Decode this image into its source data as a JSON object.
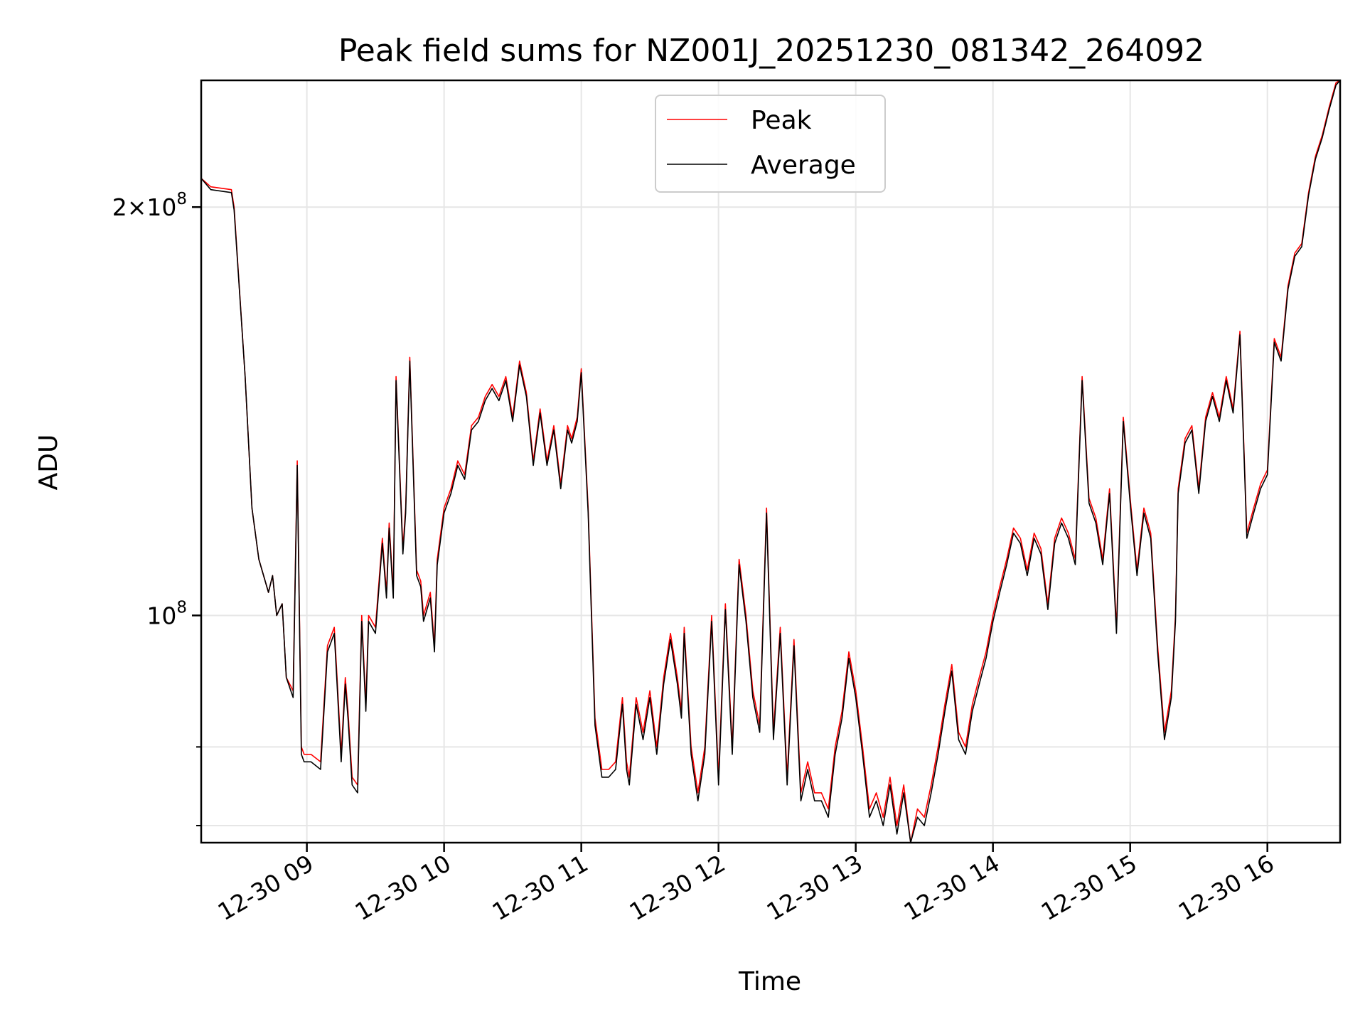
{
  "chart_data": {
    "type": "line",
    "title": "Peak field sums for NZ001J_20251230_081342_264092",
    "xlabel": "Time",
    "ylabel": "ADU",
    "yscale": "log",
    "ylim": [
      68000000,
      248000000
    ],
    "xlim": [
      8.23,
      16.53
    ],
    "grid": true,
    "legend_position": "upper center",
    "x_ticks": [
      {
        "value": 9,
        "label": "12-30 09"
      },
      {
        "value": 10,
        "label": "12-30 10"
      },
      {
        "value": 11,
        "label": "12-30 11"
      },
      {
        "value": 12,
        "label": "12-30 12"
      },
      {
        "value": 13,
        "label": "12-30 13"
      },
      {
        "value": 14,
        "label": "12-30 14"
      },
      {
        "value": 15,
        "label": "12-30 15"
      },
      {
        "value": 16,
        "label": "12-30 16"
      }
    ],
    "y_major_ticks": [
      {
        "value": 100000000,
        "base": "10",
        "exp": "8",
        "mantissa": ""
      },
      {
        "value": 200000000,
        "base": "10",
        "exp": "8",
        "mantissa": "2×"
      }
    ],
    "y_minor_ticks": [
      70000000,
      80000000
    ],
    "x_hours": [
      8.23,
      8.3,
      8.45,
      8.47,
      8.55,
      8.6,
      8.65,
      8.72,
      8.75,
      8.78,
      8.82,
      8.85,
      8.9,
      8.93,
      8.96,
      8.98,
      9.03,
      9.1,
      9.15,
      9.2,
      9.22,
      9.25,
      9.28,
      9.3,
      9.33,
      9.37,
      9.4,
      9.43,
      9.45,
      9.5,
      9.55,
      9.58,
      9.6,
      9.63,
      9.65,
      9.7,
      9.72,
      9.75,
      9.8,
      9.83,
      9.85,
      9.9,
      9.93,
      9.95,
      10.0,
      10.05,
      10.1,
      10.15,
      10.2,
      10.25,
      10.3,
      10.35,
      10.4,
      10.45,
      10.5,
      10.55,
      10.6,
      10.65,
      10.7,
      10.75,
      10.8,
      10.85,
      10.9,
      10.93,
      10.97,
      11.0,
      11.05,
      11.1,
      11.15,
      11.2,
      11.25,
      11.3,
      11.33,
      11.35,
      11.4,
      11.45,
      11.5,
      11.55,
      11.6,
      11.65,
      11.7,
      11.73,
      11.75,
      11.8,
      11.85,
      11.9,
      11.95,
      12.0,
      12.05,
      12.1,
      12.15,
      12.2,
      12.25,
      12.3,
      12.35,
      12.4,
      12.45,
      12.5,
      12.55,
      12.6,
      12.65,
      12.7,
      12.75,
      12.8,
      12.85,
      12.9,
      12.95,
      13.0,
      13.05,
      13.1,
      13.15,
      13.2,
      13.25,
      13.3,
      13.35,
      13.4,
      13.45,
      13.5,
      13.55,
      13.6,
      13.65,
      13.7,
      13.75,
      13.8,
      13.85,
      13.9,
      13.95,
      14.0,
      14.05,
      14.1,
      14.15,
      14.2,
      14.25,
      14.3,
      14.35,
      14.4,
      14.45,
      14.5,
      14.55,
      14.6,
      14.65,
      14.7,
      14.75,
      14.8,
      14.85,
      14.9,
      14.95,
      15.0,
      15.05,
      15.1,
      15.15,
      15.2,
      15.25,
      15.3,
      15.33,
      15.35,
      15.4,
      15.45,
      15.5,
      15.55,
      15.6,
      15.65,
      15.7,
      15.75,
      15.8,
      15.85,
      15.9,
      15.95,
      16.0,
      16.05,
      16.1,
      16.15,
      16.2,
      16.25,
      16.3,
      16.35,
      16.4,
      16.45,
      16.5,
      16.53
    ],
    "series": [
      {
        "name": "Peak",
        "color": "#ff0000",
        "values": [
          210000000,
          207000000,
          206000000,
          200000000,
          150000000,
          120000000,
          110000000,
          104000000,
          107000000,
          100000000,
          102000000,
          90000000,
          88000000,
          130000000,
          80000000,
          79000000,
          79000000,
          78000000,
          95000000,
          98000000,
          90000000,
          79000000,
          90000000,
          85000000,
          76000000,
          75000000,
          100000000,
          86000000,
          100000000,
          98000000,
          114000000,
          104000000,
          117000000,
          104000000,
          150000000,
          112000000,
          120000000,
          155000000,
          108000000,
          106000000,
          100000000,
          104000000,
          95000000,
          110000000,
          120000000,
          124000000,
          130000000,
          127000000,
          138000000,
          140000000,
          145000000,
          148000000,
          145000000,
          150000000,
          140000000,
          154000000,
          146000000,
          130000000,
          142000000,
          130000000,
          138000000,
          125000000,
          138000000,
          135000000,
          140000000,
          152000000,
          120000000,
          84000000,
          77000000,
          77000000,
          78000000,
          87000000,
          78000000,
          76000000,
          87000000,
          82000000,
          88000000,
          80000000,
          90000000,
          97000000,
          90000000,
          85000000,
          98000000,
          80000000,
          74000000,
          80000000,
          100000000,
          76000000,
          102000000,
          80000000,
          110000000,
          100000000,
          88000000,
          83000000,
          120000000,
          82000000,
          98000000,
          76000000,
          96000000,
          74000000,
          78000000,
          74000000,
          74000000,
          72000000,
          80000000,
          85000000,
          94000000,
          88000000,
          80000000,
          72000000,
          74000000,
          71000000,
          76000000,
          70000000,
          75000000,
          68000000,
          72000000,
          71000000,
          75000000,
          80000000,
          86000000,
          92000000,
          82000000,
          80000000,
          86000000,
          90000000,
          94000000,
          100000000,
          105000000,
          110000000,
          116000000,
          114000000,
          108000000,
          115000000,
          112000000,
          102000000,
          114000000,
          118000000,
          115000000,
          110000000,
          150000000,
          122000000,
          118000000,
          110000000,
          124000000,
          98000000,
          140000000,
          122000000,
          108000000,
          120000000,
          115000000,
          95000000,
          82000000,
          88000000,
          100000000,
          124000000,
          135000000,
          138000000,
          124000000,
          140000000,
          146000000,
          140000000,
          150000000,
          142000000,
          162000000,
          115000000,
          120000000,
          125000000,
          128000000,
          160000000,
          155000000,
          175000000,
          185000000,
          188000000,
          205000000,
          218000000,
          226000000,
          237000000,
          247000000,
          248000000
        ]
      },
      {
        "name": "Average",
        "color": "#000000",
        "values": [
          210000000,
          206000000,
          205000000,
          199000000,
          150000000,
          120000000,
          110000000,
          104000000,
          107000000,
          100000000,
          102000000,
          90000000,
          87000000,
          129000000,
          79000000,
          78000000,
          78000000,
          77000000,
          94000000,
          97000000,
          89000000,
          78000000,
          89000000,
          84000000,
          75000000,
          74000000,
          99000000,
          85000000,
          99000000,
          97000000,
          113000000,
          103000000,
          116000000,
          103000000,
          149000000,
          111000000,
          119000000,
          154000000,
          107000000,
          105000000,
          99000000,
          103000000,
          94000000,
          109000000,
          119000000,
          123000000,
          129000000,
          126000000,
          137000000,
          139000000,
          144000000,
          147000000,
          144000000,
          149000000,
          139000000,
          153000000,
          145000000,
          129000000,
          141000000,
          129000000,
          137000000,
          124000000,
          137000000,
          134000000,
          139000000,
          151000000,
          119000000,
          83000000,
          76000000,
          76000000,
          77000000,
          86000000,
          77000000,
          75000000,
          86000000,
          81000000,
          87000000,
          79000000,
          89000000,
          96000000,
          89000000,
          84000000,
          97000000,
          79000000,
          73000000,
          79000000,
          99000000,
          75000000,
          101000000,
          79000000,
          109000000,
          99000000,
          87000000,
          82000000,
          119000000,
          81000000,
          97000000,
          75000000,
          95000000,
          73000000,
          77000000,
          73000000,
          73000000,
          71000000,
          79000000,
          84000000,
          93000000,
          87000000,
          79000000,
          71000000,
          73000000,
          70000000,
          75000000,
          69000000,
          74000000,
          68000000,
          71000000,
          70000000,
          74000000,
          79000000,
          85000000,
          91000000,
          81000000,
          79000000,
          85000000,
          89000000,
          93000000,
          99000000,
          104000000,
          109000000,
          115000000,
          113000000,
          107000000,
          114000000,
          111000000,
          101000000,
          113000000,
          117000000,
          114000000,
          109000000,
          149000000,
          121000000,
          117000000,
          109000000,
          123000000,
          97000000,
          139000000,
          121000000,
          107000000,
          119000000,
          114000000,
          94000000,
          81000000,
          87000000,
          99000000,
          123000000,
          134000000,
          137000000,
          123000000,
          139000000,
          145000000,
          139000000,
          149000000,
          141000000,
          161000000,
          114000000,
          119000000,
          124000000,
          127000000,
          159000000,
          154000000,
          174000000,
          184000000,
          187000000,
          204000000,
          217000000,
          225000000,
          236000000,
          246000000,
          248000000
        ]
      }
    ]
  }
}
